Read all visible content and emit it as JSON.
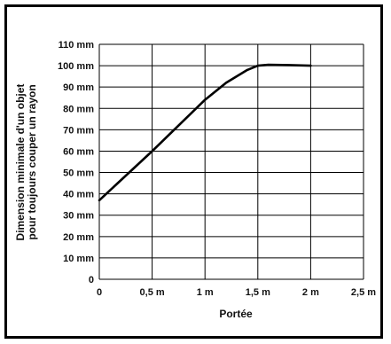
{
  "chart_data": {
    "type": "line",
    "title": "",
    "xlabel": "Portée",
    "ylabel_lines": [
      "Dimension minimale d'un objet",
      "pour toujours couper un rayon"
    ],
    "x_ticks": [
      0,
      0.5,
      1,
      1.5,
      2,
      2.5
    ],
    "x_tick_labels": [
      "0",
      "0,5 m",
      "1 m",
      "1,5 m",
      "2 m",
      "2,5 m"
    ],
    "y_ticks": [
      0,
      10,
      20,
      30,
      40,
      50,
      60,
      70,
      80,
      90,
      100,
      110
    ],
    "y_tick_labels": [
      "0",
      "10 mm",
      "20 mm",
      "30 mm",
      "40 mm",
      "50 mm",
      "60 mm",
      "70 mm",
      "80 mm",
      "90 mm",
      "100 mm",
      "110 mm"
    ],
    "xlim": [
      0,
      2.5
    ],
    "ylim": [
      0,
      110
    ],
    "grid": true,
    "series": [
      {
        "x": [
          0,
          0.5,
          1.0,
          1.2,
          1.4,
          1.5,
          1.6,
          1.8,
          2.0
        ],
        "y": [
          37,
          60,
          84,
          92,
          98,
          100,
          100.4,
          100.3,
          100
        ],
        "color": "#000000"
      }
    ]
  }
}
